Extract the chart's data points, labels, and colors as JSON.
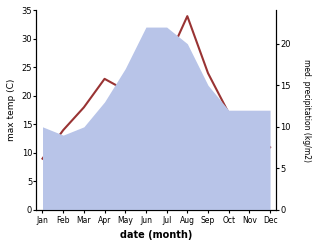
{
  "months": [
    "Jan",
    "Feb",
    "Mar",
    "Apr",
    "May",
    "Jun",
    "Jul",
    "Aug",
    "Sep",
    "Oct",
    "Nov",
    "Dec"
  ],
  "temp": [
    9,
    14,
    18,
    23,
    21,
    27,
    26,
    34,
    24,
    17,
    14,
    11
  ],
  "precip": [
    10,
    9,
    10,
    13,
    17,
    22,
    22,
    20,
    15,
    12,
    12,
    12
  ],
  "temp_color": "#993333",
  "precip_color": "#b8c4e8",
  "xlabel": "date (month)",
  "ylabel_left": "max temp (C)",
  "ylabel_right": "med. precipitation (kg/m2)",
  "ylim_left": [
    0,
    35
  ],
  "ylim_right": [
    0,
    24
  ],
  "yticks_left": [
    0,
    5,
    10,
    15,
    20,
    25,
    30,
    35
  ],
  "yticks_right": [
    0,
    5,
    10,
    15,
    20
  ],
  "bg_color": "#ffffff"
}
